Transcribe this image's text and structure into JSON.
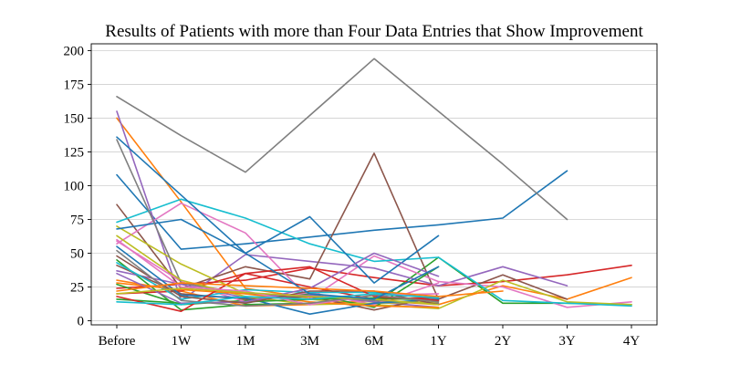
{
  "chart_data": {
    "type": "line",
    "title": "Results of Patients with more than Four Data Entries that Show Improvement",
    "xlabel": "",
    "ylabel": "",
    "categories": [
      "Before",
      "1W",
      "1M",
      "3M",
      "6M",
      "1Y",
      "2Y",
      "3Y",
      "4Y"
    ],
    "yticks": [
      0,
      25,
      50,
      75,
      100,
      125,
      150,
      175,
      200
    ],
    "ylim": [
      -3,
      205
    ],
    "grid": "horizontal",
    "legend": "none",
    "series": [
      {
        "color": "#1f77b4",
        "values": [
          108,
          53,
          57,
          62,
          67,
          71,
          76,
          111,
          null
        ]
      },
      {
        "color": "#ff7f0e",
        "values": [
          150,
          88,
          24,
          17,
          15,
          12,
          26,
          16,
          32
        ]
      },
      {
        "color": "#2ca02c",
        "values": [
          45,
          8,
          12,
          13,
          12,
          47,
          13,
          13,
          12
        ]
      },
      {
        "color": "#d62728",
        "values": [
          24,
          27,
          30,
          39,
          32,
          26,
          29,
          34,
          41
        ]
      },
      {
        "color": "#9467bd",
        "values": [
          155,
          15,
          49,
          44,
          39,
          26,
          40,
          26,
          null
        ]
      },
      {
        "color": "#8c564b",
        "values": [
          86,
          24,
          40,
          31,
          124,
          16,
          34,
          16,
          null
        ]
      },
      {
        "color": "#e377c2",
        "values": [
          57,
          87,
          65,
          16,
          48,
          29,
          25,
          10,
          14
        ]
      },
      {
        "color": "#7f7f7f",
        "values": [
          166,
          137,
          110,
          152,
          194,
          155,
          116,
          75,
          null
        ]
      },
      {
        "color": "#bcbd22",
        "values": [
          70,
          42,
          20,
          16,
          12,
          9,
          30,
          14,
          12
        ]
      },
      {
        "color": "#17becf",
        "values": [
          73,
          90,
          76,
          57,
          44,
          47,
          15,
          13,
          11
        ]
      },
      {
        "color": "#1f77b4",
        "values": [
          68,
          75,
          50,
          77,
          28,
          63,
          null,
          null,
          null
        ]
      },
      {
        "color": "#ff7f0e",
        "values": [
          30,
          22,
          11,
          12,
          15,
          18,
          22,
          null,
          null
        ]
      },
      {
        "color": "#2ca02c",
        "values": [
          27,
          12,
          15,
          20,
          10,
          40,
          null,
          null,
          null
        ]
      },
      {
        "color": "#d62728",
        "values": [
          20,
          22,
          35,
          25,
          16,
          17,
          null,
          null,
          null
        ]
      },
      {
        "color": "#9467bd",
        "values": [
          37,
          27,
          17,
          19,
          14,
          10,
          null,
          null,
          null
        ]
      },
      {
        "color": "#8c564b",
        "values": [
          41,
          20,
          16,
          18,
          8,
          18,
          null,
          null,
          null
        ]
      },
      {
        "color": "#e377c2",
        "values": [
          59,
          29,
          14,
          21,
          12,
          28,
          null,
          null,
          null
        ]
      },
      {
        "color": "#7f7f7f",
        "values": [
          134,
          28,
          20,
          18,
          15,
          13,
          null,
          null,
          null
        ]
      },
      {
        "color": "#bcbd22",
        "values": [
          63,
          30,
          18,
          12,
          13,
          14,
          null,
          null,
          null
        ]
      },
      {
        "color": "#17becf",
        "values": [
          43,
          16,
          23,
          21,
          21,
          17,
          null,
          null,
          null
        ]
      },
      {
        "color": "#1f77b4",
        "values": [
          55,
          19,
          17,
          5,
          13,
          16,
          null,
          null,
          null
        ]
      },
      {
        "color": "#ff7f0e",
        "values": [
          28,
          23,
          20,
          14,
          11,
          10,
          null,
          null,
          null
        ]
      },
      {
        "color": "#2ca02c",
        "values": [
          16,
          13,
          14,
          16,
          17,
          15,
          null,
          null,
          null
        ]
      },
      {
        "color": "#d62728",
        "values": [
          18,
          7,
          35,
          40,
          18,
          15,
          null,
          null,
          null
        ]
      },
      {
        "color": "#9467bd",
        "values": [
          35,
          13,
          14,
          24,
          50,
          33,
          null,
          null,
          null
        ]
      },
      {
        "color": "#8c564b",
        "values": [
          48,
          18,
          13,
          22,
          22,
          12,
          null,
          null,
          null
        ]
      },
      {
        "color": "#e377c2",
        "values": [
          60,
          25,
          22,
          12,
          19,
          20,
          null,
          null,
          null
        ]
      },
      {
        "color": "#7f7f7f",
        "values": [
          52,
          15,
          11,
          13,
          19,
          14,
          null,
          null,
          null
        ]
      },
      {
        "color": "#bcbd22",
        "values": [
          20,
          24,
          21,
          18,
          16,
          12,
          null,
          null,
          null
        ]
      },
      {
        "color": "#17becf",
        "values": [
          14,
          12,
          18,
          16,
          20,
          17,
          null,
          null,
          null
        ]
      },
      {
        "color": "#1f77b4",
        "values": [
          136,
          93,
          50,
          20,
          16,
          40,
          null,
          null,
          null
        ]
      },
      {
        "color": "#ff7f0e",
        "values": [
          22,
          28,
          26,
          24,
          22,
          18,
          null,
          null,
          null
        ]
      }
    ]
  }
}
